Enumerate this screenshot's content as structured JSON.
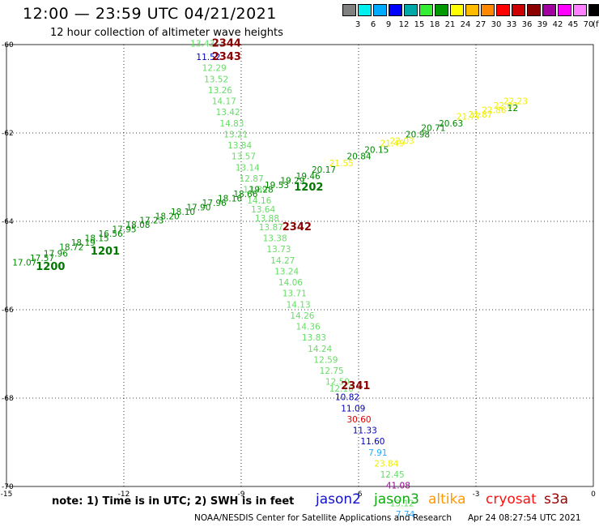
{
  "header": {
    "title": "12:00 — 23:59 UTC 04/21/2021",
    "subtitle": "12 hour collection of altimeter wave heights"
  },
  "legend": {
    "colors": [
      "#808080",
      "#00f0f0",
      "#00aaff",
      "#0000ff",
      "#00a8a8",
      "#33ee33",
      "#009900",
      "#ffff00",
      "#ffbb00",
      "#ff8800",
      "#ff0000",
      "#cc0000",
      "#8b0000",
      "#a000a0",
      "#ff00ff",
      "#ff80ff",
      "#000000"
    ],
    "labels": [
      "3",
      "6",
      "9",
      "12",
      "15",
      "18",
      "21",
      "24",
      "27",
      "30",
      "33",
      "36",
      "39",
      "42",
      "45",
      "70"
    ],
    "unit": "(ft)"
  },
  "axes": {
    "x_ticks": [
      "-15",
      "-12",
      "-9",
      "-6",
      "-3",
      "0"
    ],
    "y_ticks": [
      "-60",
      "-62",
      "-64",
      "-66",
      "-68",
      "-70"
    ]
  },
  "chart_data": {
    "type": "scatter",
    "x_range": [
      -15,
      0
    ],
    "y_range": [
      -70,
      -60
    ],
    "grid": true,
    "point_labels": [
      {
        "lon": -10.3,
        "lat": -60.05,
        "text": "13.43",
        "color": "#66dd66"
      },
      {
        "lon": -10.15,
        "lat": -60.35,
        "text": "11.52",
        "color": "#0000bb"
      },
      {
        "lon": -10.0,
        "lat": -60.6,
        "text": "12.29",
        "color": "#66dd66"
      },
      {
        "lon": -9.95,
        "lat": -60.85,
        "text": "13.52",
        "color": "#66dd66"
      },
      {
        "lon": -9.85,
        "lat": -61.1,
        "text": "13.26",
        "color": "#66dd66"
      },
      {
        "lon": -9.75,
        "lat": -61.35,
        "text": "14.17",
        "color": "#66dd66"
      },
      {
        "lon": -9.65,
        "lat": -61.6,
        "text": "13.42",
        "color": "#66dd66"
      },
      {
        "lon": -9.55,
        "lat": -61.85,
        "text": "14.83",
        "color": "#66dd66"
      },
      {
        "lon": -9.45,
        "lat": -62.1,
        "text": "13.21",
        "color": "#66dd66"
      },
      {
        "lon": -9.35,
        "lat": -62.35,
        "text": "13.84",
        "color": "#66dd66"
      },
      {
        "lon": -9.25,
        "lat": -62.6,
        "text": "13.57",
        "color": "#66dd66"
      },
      {
        "lon": -9.15,
        "lat": -62.85,
        "text": "13.14",
        "color": "#66dd66"
      },
      {
        "lon": -9.05,
        "lat": -63.1,
        "text": "12.87",
        "color": "#66dd66"
      },
      {
        "lon": -8.95,
        "lat": -63.35,
        "text": "13.89",
        "color": "#66dd66"
      },
      {
        "lon": -8.85,
        "lat": -63.6,
        "text": "14.16",
        "color": "#66dd66"
      },
      {
        "lon": -8.75,
        "lat": -63.8,
        "text": "13.64",
        "color": "#66dd66"
      },
      {
        "lon": -8.65,
        "lat": -64.0,
        "text": "13.88",
        "color": "#66dd66"
      },
      {
        "lon": -8.55,
        "lat": -64.2,
        "text": "13.87",
        "color": "#66dd66"
      },
      {
        "lon": -8.45,
        "lat": -64.45,
        "text": "13.38",
        "color": "#66dd66"
      },
      {
        "lon": -8.35,
        "lat": -64.7,
        "text": "13.73",
        "color": "#66dd66"
      },
      {
        "lon": -8.25,
        "lat": -64.95,
        "text": "14.27",
        "color": "#66dd66"
      },
      {
        "lon": -8.15,
        "lat": -65.2,
        "text": "13.24",
        "color": "#66dd66"
      },
      {
        "lon": -8.05,
        "lat": -65.45,
        "text": "14.06",
        "color": "#66dd66"
      },
      {
        "lon": -7.95,
        "lat": -65.7,
        "text": "13.71",
        "color": "#66dd66"
      },
      {
        "lon": -7.85,
        "lat": -65.95,
        "text": "14.13",
        "color": "#66dd66"
      },
      {
        "lon": -7.75,
        "lat": -66.2,
        "text": "14.26",
        "color": "#66dd66"
      },
      {
        "lon": -7.6,
        "lat": -66.45,
        "text": "14.36",
        "color": "#66dd66"
      },
      {
        "lon": -7.45,
        "lat": -66.7,
        "text": "13.83",
        "color": "#66dd66"
      },
      {
        "lon": -7.3,
        "lat": -66.95,
        "text": "14.24",
        "color": "#66dd66"
      },
      {
        "lon": -7.15,
        "lat": -67.2,
        "text": "12.59",
        "color": "#66dd66"
      },
      {
        "lon": -7.0,
        "lat": -67.45,
        "text": "12.75",
        "color": "#66dd66"
      },
      {
        "lon": -6.85,
        "lat": -67.7,
        "text": "12.50",
        "color": "#66dd66"
      },
      {
        "lon": -6.75,
        "lat": -67.85,
        "text": "12.16",
        "color": "#66dd66"
      },
      {
        "lon": -6.6,
        "lat": -68.05,
        "text": "10.82",
        "color": "#0000bb"
      },
      {
        "lon": -6.45,
        "lat": -68.3,
        "text": "11.09",
        "color": "#0000bb"
      },
      {
        "lon": -6.3,
        "lat": -68.55,
        "text": "30.60",
        "color": "#dd0000"
      },
      {
        "lon": -6.15,
        "lat": -68.8,
        "text": "11.33",
        "color": "#0000bb"
      },
      {
        "lon": -5.95,
        "lat": -69.05,
        "text": "11.60",
        "color": "#0000bb"
      },
      {
        "lon": -5.75,
        "lat": -69.3,
        "text": "7.91",
        "color": "#22aaff"
      },
      {
        "lon": -5.6,
        "lat": -69.55,
        "text": "23.84",
        "color": "#eeee00"
      },
      {
        "lon": -5.45,
        "lat": -69.8,
        "text": "12.45",
        "color": "#66dd66"
      },
      {
        "lon": -5.3,
        "lat": -70.05,
        "text": "41.08",
        "color": "#990099"
      },
      {
        "lon": -5.2,
        "lat": -70.45,
        "text": "13.12",
        "color": "#66dd66"
      },
      {
        "lon": -5.05,
        "lat": -70.7,
        "text": "7.74",
        "color": "#22aaff"
      },
      {
        "lon": -14.85,
        "lat": -65.0,
        "text": "17.07",
        "color": "#008800"
      },
      {
        "lon": -14.4,
        "lat": -64.9,
        "text": "17.57",
        "color": "#008800"
      },
      {
        "lon": -14.05,
        "lat": -64.8,
        "text": "17.96",
        "color": "#008800"
      },
      {
        "lon": -13.65,
        "lat": -64.65,
        "text": "18.72",
        "color": "#008800"
      },
      {
        "lon": -13.35,
        "lat": -64.55,
        "text": "18.19",
        "color": "#008800"
      },
      {
        "lon": -13.0,
        "lat": -64.45,
        "text": "18.15",
        "color": "#008800"
      },
      {
        "lon": -12.65,
        "lat": -64.35,
        "text": "16.56",
        "color": "#008800"
      },
      {
        "lon": -12.3,
        "lat": -64.25,
        "text": "17.95",
        "color": "#008800"
      },
      {
        "lon": -11.95,
        "lat": -64.15,
        "text": "18.08",
        "color": "#008800"
      },
      {
        "lon": -11.6,
        "lat": -64.05,
        "text": "17.23",
        "color": "#008800"
      },
      {
        "lon": -11.2,
        "lat": -63.95,
        "text": "18.20",
        "color": "#008800"
      },
      {
        "lon": -10.8,
        "lat": -63.85,
        "text": "18.10",
        "color": "#008800"
      },
      {
        "lon": -10.4,
        "lat": -63.75,
        "text": "17.90",
        "color": "#008800"
      },
      {
        "lon": -10.0,
        "lat": -63.65,
        "text": "17.96",
        "color": "#008800"
      },
      {
        "lon": -9.6,
        "lat": -63.55,
        "text": "18.16",
        "color": "#008800"
      },
      {
        "lon": -9.2,
        "lat": -63.45,
        "text": "18.66",
        "color": "#008800"
      },
      {
        "lon": -8.8,
        "lat": -63.35,
        "text": "19.28",
        "color": "#008800"
      },
      {
        "lon": -8.4,
        "lat": -63.25,
        "text": "19.53",
        "color": "#008800"
      },
      {
        "lon": -8.0,
        "lat": -63.15,
        "text": "19.29",
        "color": "#008800"
      },
      {
        "lon": -7.6,
        "lat": -63.05,
        "text": "19.46",
        "color": "#008800"
      },
      {
        "lon": -7.2,
        "lat": -62.9,
        "text": "20.17",
        "color": "#008800"
      },
      {
        "lon": -6.75,
        "lat": -62.75,
        "text": "21.55",
        "color": "#eeee00"
      },
      {
        "lon": -6.3,
        "lat": -62.6,
        "text": "20.84",
        "color": "#008800"
      },
      {
        "lon": -5.85,
        "lat": -62.45,
        "text": "20.15",
        "color": "#008800"
      },
      {
        "lon": -5.45,
        "lat": -62.3,
        "text": "21.49",
        "color": "#eeee00"
      },
      {
        "lon": -5.2,
        "lat": -62.25,
        "text": "22.03",
        "color": "#eeee00"
      },
      {
        "lon": -4.8,
        "lat": -62.1,
        "text": "20.98",
        "color": "#008800"
      },
      {
        "lon": -4.4,
        "lat": -61.95,
        "text": "20.71",
        "color": "#008800"
      },
      {
        "lon": -3.95,
        "lat": -61.85,
        "text": "20.63",
        "color": "#008800"
      },
      {
        "lon": -3.5,
        "lat": -61.7,
        "text": "21.77",
        "color": "#eeee00"
      },
      {
        "lon": -3.2,
        "lat": -61.65,
        "text": "21.87",
        "color": "#eeee00"
      },
      {
        "lon": -2.85,
        "lat": -61.55,
        "text": "22.86",
        "color": "#eeee00"
      },
      {
        "lon": -2.55,
        "lat": -61.45,
        "text": "22.03",
        "color": "#eeee00"
      },
      {
        "lon": -2.3,
        "lat": -61.35,
        "text": "22.23",
        "color": "#eeee00"
      },
      {
        "lon": -2.2,
        "lat": -61.5,
        "text": "12",
        "color": "#008800"
      }
    ],
    "pass_labels": [
      {
        "lon": -9.75,
        "lat": -60.05,
        "text": "2344",
        "color": "#8b0000"
      },
      {
        "lon": -9.75,
        "lat": -60.35,
        "text": "2343",
        "color": "#8b0000"
      },
      {
        "lon": -7.95,
        "lat": -64.2,
        "text": "2342",
        "color": "#8b0000"
      },
      {
        "lon": -6.45,
        "lat": -67.8,
        "text": "2341",
        "color": "#8b0000"
      },
      {
        "lon": -14.25,
        "lat": -65.1,
        "text": "1200",
        "color": "#007700"
      },
      {
        "lon": -12.85,
        "lat": -64.75,
        "text": "1201",
        "color": "#007700"
      },
      {
        "lon": -7.65,
        "lat": -63.3,
        "text": "1202",
        "color": "#007700"
      }
    ]
  },
  "footer": {
    "note": "note: 1) Time is in UTC; 2) SWH is in feet",
    "satellites": [
      {
        "name": "jason2",
        "color": "#1111cc"
      },
      {
        "name": "jason3",
        "color": "#11aa11"
      },
      {
        "name": "altika",
        "color": "#ff9900"
      },
      {
        "name": "cryosat",
        "color": "#ff1111"
      },
      {
        "name": "s3a",
        "color": "#990000"
      }
    ],
    "credit": "NOAA/NESDIS Center for Satellite Applications and Research",
    "timestamp": "Apr 24 08:27:54 UTC 2021"
  }
}
